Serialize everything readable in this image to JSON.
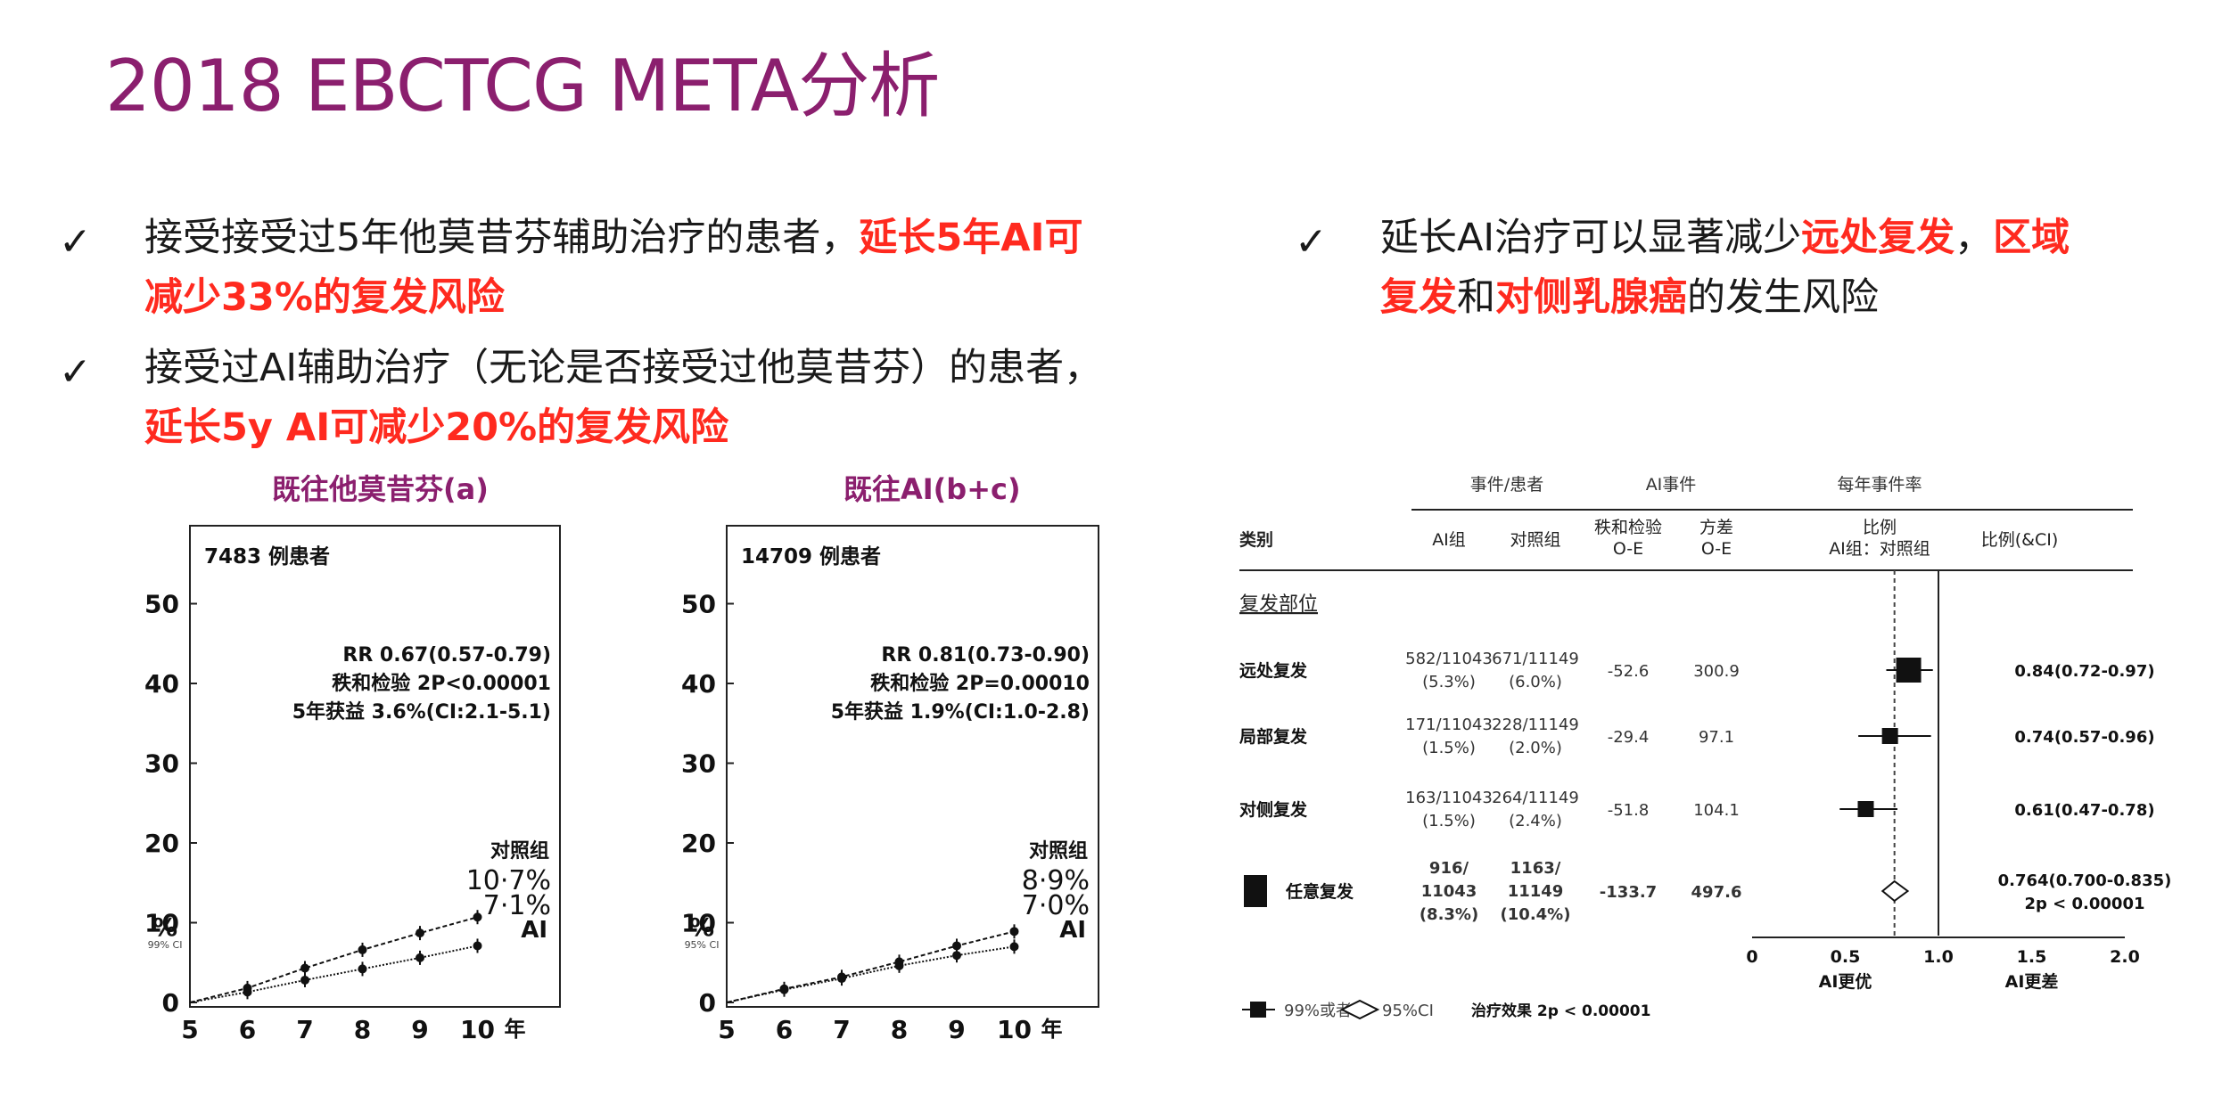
{
  "title": "2018 EBCTCG META分析",
  "left_bullets": [
    {
      "check": "✓",
      "parts": [
        {
          "t": "接受接受过5年他莫昔芬辅助治疗的患者，",
          "r": false
        },
        {
          "t": "延长5年AI可",
          "r": true
        }
      ],
      "line2": [
        {
          "t": "减少33%的复发风险",
          "r": true
        }
      ]
    },
    {
      "check": "✓",
      "parts": [
        {
          "t": "接受过AI辅助治疗（无论是否接受过他莫昔芬）的患者，",
          "r": false
        }
      ],
      "line2": [
        {
          "t": "延长5y AI可减少20%的复发风险",
          "r": true
        }
      ]
    }
  ],
  "right_bullet": {
    "check": "✓",
    "line1": [
      {
        "t": "延长AI治疗可以显著减少",
        "r": false
      },
      {
        "t": "远处复发",
        "r": true
      },
      {
        "t": "，",
        "r": false
      },
      {
        "t": "区域",
        "r": true
      }
    ],
    "line2": [
      {
        "t": "复发",
        "r": true
      },
      {
        "t": "和",
        "r": false
      },
      {
        "t": "对侧乳腺癌",
        "r": true
      },
      {
        "t": "的发生风险",
        "r": false
      }
    ]
  },
  "captions": {
    "a": "既往他莫昔芬(a)",
    "b": "既往AI(b+c)"
  },
  "chart_data": [
    {
      "type": "line",
      "panel": "a",
      "n_label": "7483 例患者",
      "stats": [
        "RR 0.67(0.57-0.79)",
        "秩和检验 2P<0.00001",
        "5年获益 3.6%(CI:2.1-5.1)"
      ],
      "y_ticks": [
        0,
        10,
        20,
        30,
        40,
        50
      ],
      "x_ticks": [
        5,
        6,
        7,
        8,
        9,
        10
      ],
      "x_unit": "年",
      "ylabel": "%",
      "ci_label": "99% CI",
      "x": [
        5,
        6,
        7,
        8,
        9,
        10
      ],
      "series": [
        {
          "name": "对照组",
          "values": [
            0,
            1.8,
            4.3,
            6.6,
            8.7,
            10.7
          ],
          "end_label": "10·7%"
        },
        {
          "name": "AI",
          "values": [
            0,
            1.3,
            2.8,
            4.2,
            5.6,
            7.1
          ],
          "end_label": "7·1%"
        }
      ]
    },
    {
      "type": "line",
      "panel": "b",
      "n_label": "14709 例患者",
      "stats": [
        "RR 0.81(0.73-0.90)",
        "秩和检验 2P=0.00010",
        "5年获益 1.9%(CI:1.0-2.8)"
      ],
      "y_ticks": [
        0,
        10,
        20,
        30,
        40,
        50
      ],
      "x_ticks": [
        5,
        6,
        7,
        8,
        9,
        10
      ],
      "x_unit": "年",
      "ylabel": "%",
      "ci_label": "95% CI",
      "x": [
        5,
        6,
        7,
        8,
        9,
        10
      ],
      "series": [
        {
          "name": "对照组",
          "values": [
            0,
            1.7,
            3.2,
            5.1,
            7.1,
            8.9
          ],
          "end_label": "8·9%"
        },
        {
          "name": "AI",
          "values": [
            0,
            1.6,
            3.0,
            4.6,
            5.9,
            7.0
          ],
          "end_label": "7·0%"
        }
      ]
    },
    {
      "type": "forest",
      "header_groups": [
        "事件/患者",
        "AI事件",
        "每年事件率"
      ],
      "columns": [
        "类别",
        "AI组",
        "对照组",
        "秩和检验\nO-E",
        "方差\nO-E",
        "比例\nAI组：对照组",
        "比例(&CI)"
      ],
      "section": "复发部位",
      "rows": [
        {
          "label": "远处复发",
          "ai": "582/11043\n(5.3%)",
          "ctrl": "671/11149\n(6.0%)",
          "oe": "-52.6",
          "var": "300.9",
          "rr": 0.84,
          "lo": 0.72,
          "hi": 0.97,
          "txt": "0.84(0.72-0.97)"
        },
        {
          "label": "局部复发",
          "ai": "171/11043\n(1.5%)",
          "ctrl": "228/11149\n(2.0%)",
          "oe": "-29.4",
          "var": "97.1",
          "rr": 0.74,
          "lo": 0.57,
          "hi": 0.96,
          "txt": "0.74(0.57-0.96)"
        },
        {
          "label": "对侧复发",
          "ai": "163/11043\n(1.5%)",
          "ctrl": "264/11149\n(2.4%)",
          "oe": "-51.8",
          "var": "104.1",
          "rr": 0.61,
          "lo": 0.47,
          "hi": 0.78,
          "txt": "0.61(0.47-0.78)"
        },
        {
          "label": "任意复发",
          "ai": "916/\n11043\n(8.3%)",
          "ctrl": "1163/\n11149\n(10.4%)",
          "oe": "-133.7",
          "var": "497.6",
          "rr": 0.764,
          "lo": 0.7,
          "hi": 0.835,
          "txt": "0.764(0.700-0.835)\n2p < 0.00001",
          "total": true
        }
      ],
      "x_ticks": [
        "0",
        "0.5",
        "1.0",
        "1.5",
        "2.0"
      ],
      "x_range": [
        0,
        2
      ],
      "favours_left": "AI更优",
      "favours_right": "AI更差",
      "legend": "99%或者",
      "legend2": "95%CI",
      "effect": "治疗效果 2p < 0.00001"
    }
  ]
}
